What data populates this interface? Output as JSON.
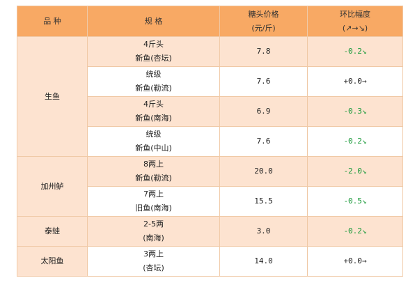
{
  "headers": {
    "category": "品  种",
    "spec": "规  格",
    "price_line1": "糖头价格",
    "price_line2": "(元/斤)",
    "change_line1": "环比幅度",
    "change_line2": "(↗→↘)"
  },
  "groups": [
    {
      "category": "生鱼",
      "rows": [
        {
          "spec1": "4斤头",
          "spec2": "新鱼(杏坛)",
          "price": "7.8",
          "change": "-0.2↘",
          "trend": "down",
          "shade": true
        },
        {
          "spec1": "统级",
          "spec2": "新鱼(勒流)",
          "price": "7.6",
          "change": "+0.0→",
          "trend": "flat",
          "shade": false
        },
        {
          "spec1": "4斤头",
          "spec2": "新鱼(南海)",
          "price": "6.9",
          "change": "-0.3↘",
          "trend": "down",
          "shade": true
        },
        {
          "spec1": "统级",
          "spec2": "新鱼(中山)",
          "price": "7.6",
          "change": "-0.2↘",
          "trend": "down",
          "shade": false
        }
      ]
    },
    {
      "category": "加州鲈",
      "rows": [
        {
          "spec1": "8两上",
          "spec2": "新鱼(勒流)",
          "price": "20.0",
          "change": "-2.0↘",
          "trend": "down",
          "shade": true
        },
        {
          "spec1": "7两上",
          "spec2": "旧鱼(南海)",
          "price": "15.5",
          "change": "-0.5↘",
          "trend": "down",
          "shade": false
        }
      ]
    },
    {
      "category": "泰蛙",
      "rows": [
        {
          "spec1": "2-5两",
          "spec2": "(南海)",
          "price": "3.0",
          "change": "-0.2↘",
          "trend": "down",
          "shade": true
        }
      ]
    },
    {
      "category": "太阳鱼",
      "rows": [
        {
          "spec1": "3两上",
          "spec2": "(杏坛)",
          "price": "14.0",
          "change": "+0.0→",
          "trend": "flat",
          "shade": false
        }
      ]
    }
  ],
  "colors": {
    "header_bg": "#f8a964",
    "shade_bg": "#fde3d0",
    "down_color": "#1a9a3a",
    "border": "#f0c9a6"
  }
}
